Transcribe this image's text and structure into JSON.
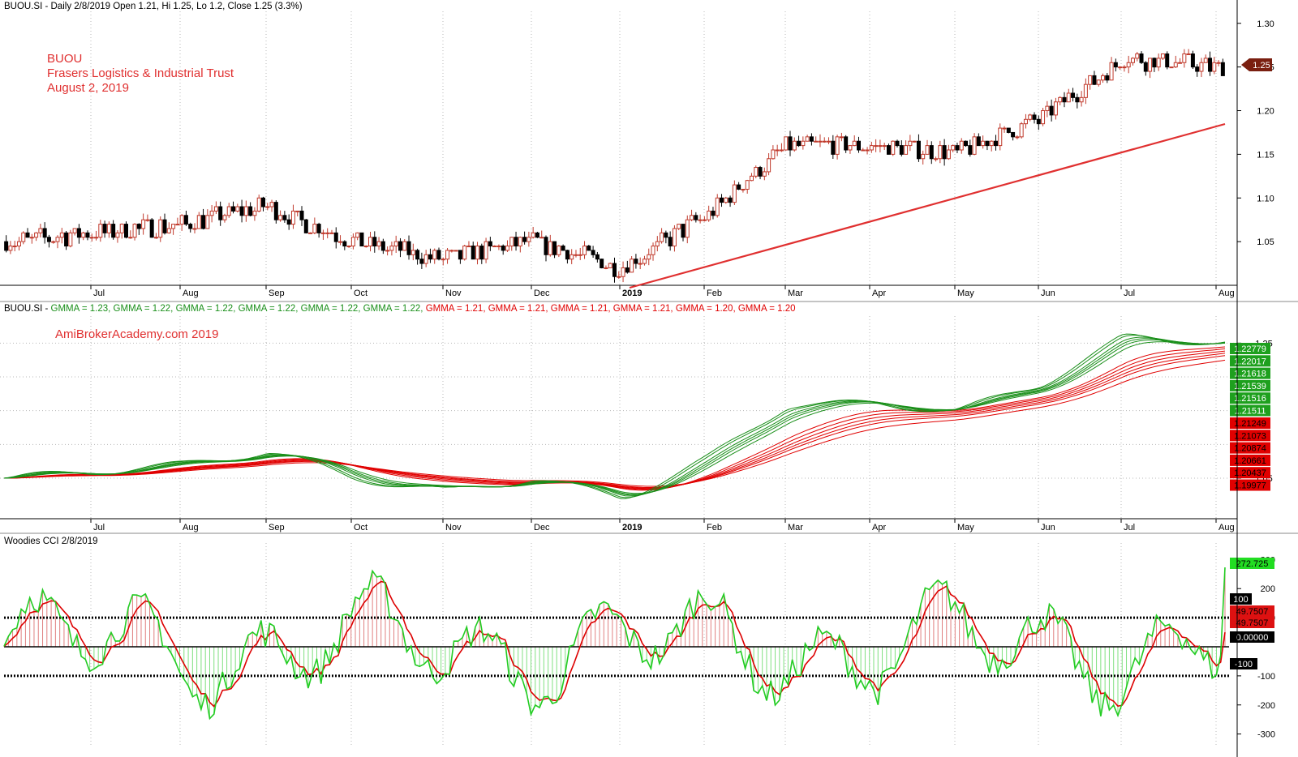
{
  "colors": {
    "up": "#c0392b",
    "down": "#000000",
    "trend": "#e03030",
    "gmma_short": "#1a8f1a",
    "gmma_long": "#e00000",
    "cci_line": "#22cc22",
    "tcci_line": "#dd0000",
    "overlay_text": "#e03030",
    "grid": "#b8b8b8"
  },
  "price_panel": {
    "header": "BUOU.SI - Daily 2/8/2019 Open 1.21, Hi 1.25, Lo 1.2, Close 1.25 (3.3%)",
    "annotation_lines": [
      "BUOU",
      "Frasers Logistics & Industrial Trust",
      "August 2, 2019"
    ],
    "last_price_badge": "1.25"
  },
  "gmma_panel": {
    "header": [
      {
        "text": "BUOU.SI - ",
        "color": "#000000"
      },
      {
        "text": "GMMA = 1.23, ",
        "color": "#1a8f1a"
      },
      {
        "text": "GMMA = 1.22, ",
        "color": "#1a8f1a"
      },
      {
        "text": "GMMA = 1.22, ",
        "color": "#1a8f1a"
      },
      {
        "text": "GMMA = 1.22, ",
        "color": "#1a8f1a"
      },
      {
        "text": "GMMA = 1.22, ",
        "color": "#1a8f1a"
      },
      {
        "text": "GMMA = 1.22, ",
        "color": "#1a8f1a"
      },
      {
        "text": "GMMA = 1.21, ",
        "color": "#e00000"
      },
      {
        "text": "GMMA = 1.21, ",
        "color": "#e00000"
      },
      {
        "text": "GMMA = 1.21, ",
        "color": "#e00000"
      },
      {
        "text": "GMMA = 1.21, ",
        "color": "#e00000"
      },
      {
        "text": "GMMA = 1.20, ",
        "color": "#e00000"
      },
      {
        "text": "GMMA = 1.20",
        "color": "#e00000"
      }
    ],
    "watermark": "AmiBrokerAcademy.com   2019",
    "green_badges": [
      "1.22779",
      "1.22017",
      "1.21618",
      "1.21539",
      "1.21516",
      "1.21511"
    ],
    "red_badges": [
      "1.21249",
      "1.21073",
      "1.20874",
      "1.20661",
      "1.20437",
      "1.19977"
    ]
  },
  "cci_panel": {
    "header": "Woodies CCI  2/8/2019",
    "badges": [
      {
        "text": "272.725",
        "bg": "#22dd22",
        "fg": "#000000"
      },
      {
        "text": "100",
        "bg": "#000000",
        "fg": "#ffffff"
      },
      {
        "text": "49.7507",
        "bg": "#dd1111",
        "fg": "#000000"
      },
      {
        "text": "49.7507",
        "bg": "#dd1111",
        "fg": "#000000"
      },
      {
        "text": "0.00000",
        "bg": "#000000",
        "fg": "#ffffff"
      },
      {
        "text": "-100",
        "bg": "#000000",
        "fg": "#ffffff"
      }
    ]
  },
  "chart_data": [
    {
      "type": "candlestick",
      "title": "BUOU.SI - Daily 2/8/2019 Open 1.21, Hi 1.25, Lo 1.2, Close 1.25 (3.3%)",
      "x_tick_labels": [
        "Jul",
        "Aug",
        "Sep",
        "Oct",
        "Nov",
        "Dec",
        "2019",
        "Feb",
        "Mar",
        "Apr",
        "May",
        "Jun",
        "Jul",
        "Aug"
      ],
      "y_tick_labels": [
        "1.30",
        "1.25",
        "1.20",
        "1.15",
        "1.10",
        "1.05"
      ],
      "ylim": [
        1.0,
        1.31
      ],
      "last": {
        "open": 1.21,
        "high": 1.25,
        "low": 1.2,
        "close": 1.25,
        "change_pct": 3.3
      },
      "close_by_month": {
        "months": [
          "Jun-18",
          "Jul",
          "Aug",
          "Sep",
          "Oct",
          "Nov",
          "Dec",
          "Jan-19",
          "Feb",
          "Mar",
          "Apr",
          "May",
          "Jun",
          "Jul",
          "Aug"
        ],
        "approx_close": [
          1.05,
          1.06,
          1.07,
          1.09,
          1.05,
          1.03,
          1.05,
          1.02,
          1.08,
          1.16,
          1.16,
          1.15,
          1.19,
          1.26,
          1.25
        ]
      },
      "trendline": {
        "from": {
          "month": "Jan-19",
          "value": 1.01
        },
        "to": {
          "month": "Aug",
          "value": 1.18
        }
      }
    },
    {
      "type": "line",
      "title": "GMMA",
      "x_tick_labels": [
        "Jul",
        "Aug",
        "Sep",
        "Oct",
        "Nov",
        "Dec",
        "2019",
        "Feb",
        "Mar",
        "Apr",
        "May",
        "Jun",
        "Jul",
        "Aug"
      ],
      "y_tick_labels": [
        "1.25",
        "1.05"
      ],
      "ylim": [
        0.99,
        1.29
      ],
      "last_values_short": [
        1.22779,
        1.22017,
        1.21618,
        1.21539,
        1.21516,
        1.21511
      ],
      "last_values_long": [
        1.21249,
        1.21073,
        1.20874,
        1.20661,
        1.20437,
        1.19977
      ]
    },
    {
      "type": "line",
      "title": "Woodies CCI  2/8/2019",
      "x_tick_labels": [
        "Jul",
        "Aug",
        "Sep",
        "Oct",
        "Nov",
        "Dec",
        "2019",
        "Feb",
        "Mar",
        "Apr",
        "May",
        "Jun",
        "Jul",
        "Aug"
      ],
      "y_tick_labels": [
        "300",
        "200",
        "100",
        "-100",
        "-200",
        "-300"
      ],
      "ylim": [
        -340,
        340
      ],
      "reference_lines": [
        100,
        0,
        -100
      ],
      "last": {
        "cci": 272.725,
        "tcci": 49.7507
      }
    }
  ]
}
